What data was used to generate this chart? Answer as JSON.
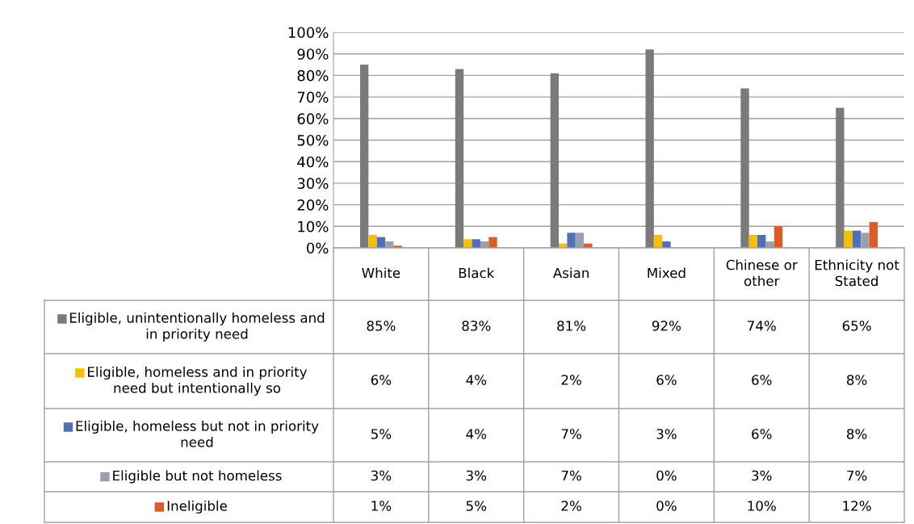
{
  "chart_data": {
    "type": "bar",
    "categories": [
      "White",
      "Black",
      "Asian",
      "Mixed",
      "Chinese or other",
      "Ethnicity not Stated"
    ],
    "series": [
      {
        "name": "Eligible, unintentionally homeless and in priority need",
        "color": "#7a7a7a",
        "values": [
          85,
          83,
          81,
          92,
          74,
          65
        ],
        "value_labels": [
          "85%",
          "83%",
          "81%",
          "92%",
          "74%",
          "65%"
        ]
      },
      {
        "name": "Eligible, homeless and in priority need but intentionally so",
        "color": "#f5c000",
        "values": [
          6,
          4,
          2,
          6,
          6,
          8
        ],
        "value_labels": [
          "6%",
          "4%",
          "2%",
          "6%",
          "6%",
          "8%"
        ]
      },
      {
        "name": "Eligible, homeless but not in priority need",
        "color": "#4f6fb8",
        "values": [
          5,
          4,
          7,
          3,
          6,
          8
        ],
        "value_labels": [
          "5%",
          "4%",
          "7%",
          "3%",
          "6%",
          "8%"
        ]
      },
      {
        "name": "Eligible but not homeless",
        "color": "#9a9fb0",
        "values": [
          3,
          3,
          7,
          0,
          3,
          7
        ],
        "value_labels": [
          "3%",
          "3%",
          "7%",
          "0%",
          "3%",
          "7%"
        ]
      },
      {
        "name": "Ineligible",
        "color": "#e05a26",
        "values": [
          1,
          5,
          2,
          0,
          10,
          12
        ],
        "value_labels": [
          "1%",
          "5%",
          "2%",
          "0%",
          "10%",
          "12%"
        ]
      }
    ],
    "ylim": [
      0,
      100
    ],
    "yticks": [
      {
        "value": 0,
        "label": "0%"
      },
      {
        "value": 10,
        "label": "10%"
      },
      {
        "value": 20,
        "label": "20%"
      },
      {
        "value": 30,
        "label": "30%"
      },
      {
        "value": 40,
        "label": "40%"
      },
      {
        "value": 50,
        "label": "50%"
      },
      {
        "value": 60,
        "label": "60%"
      },
      {
        "value": 70,
        "label": "70%"
      },
      {
        "value": 80,
        "label": "80%"
      },
      {
        "value": 90,
        "label": "90%"
      },
      {
        "value": 100,
        "label": "100%"
      }
    ],
    "grid": "y",
    "legend": "bottom"
  }
}
